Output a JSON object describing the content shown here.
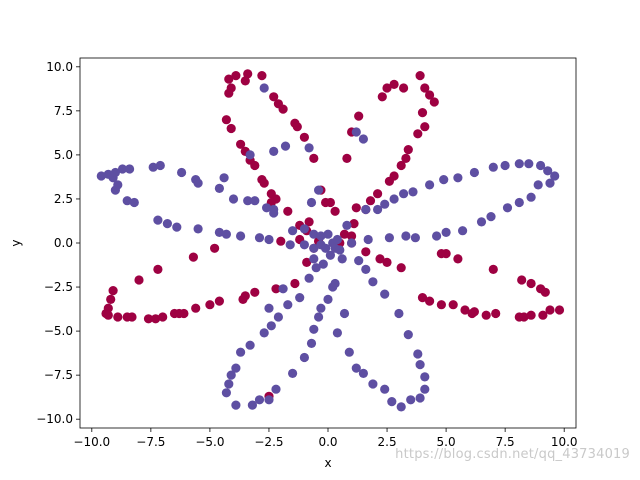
{
  "watermark": "https://blog.csdn.net/qq_43734019",
  "chart_data": {
    "type": "scatter",
    "title": "",
    "xlabel": "x",
    "ylabel": "y",
    "xlim": [
      -10.5,
      10.5
    ],
    "ylim": [
      -10.5,
      10.5
    ],
    "xticks": [
      -10.0,
      -7.5,
      -5.0,
      -2.5,
      0.0,
      2.5,
      5.0,
      7.5,
      10.0
    ],
    "yticks": [
      -10.0,
      -7.5,
      -5.0,
      -2.5,
      0.0,
      2.5,
      5.0,
      7.5,
      10.0
    ],
    "xtick_labels": [
      "−10.0",
      "−7.5",
      "−5.0",
      "−2.5",
      "0.0",
      "2.5",
      "5.0",
      "7.5",
      "10.0"
    ],
    "ytick_labels": [
      "−10.0",
      "−7.5",
      "−5.0",
      "−2.5",
      "0.0",
      "2.5",
      "5.0",
      "7.5",
      "10.0"
    ],
    "grid": false,
    "legend": false,
    "colors": {
      "red": "#9e0142",
      "blue": "#5e4fa2"
    },
    "series": [
      {
        "color": "red",
        "points": [
          [
            -4.2,
            9.3
          ],
          [
            -4.1,
            8.8
          ],
          [
            -4.2,
            8.5
          ],
          [
            -3.9,
            9.5
          ],
          [
            -3.4,
            9.6
          ],
          [
            -3.5,
            9.2
          ],
          [
            -2.8,
            9.5
          ],
          [
            -2.3,
            8.3
          ],
          [
            -2.1,
            7.9
          ],
          [
            -1.9,
            7.6
          ],
          [
            -1.4,
            6.8
          ],
          [
            -1.3,
            6.6
          ],
          [
            -4.3,
            7.0
          ],
          [
            -4.1,
            6.5
          ],
          [
            -3.7,
            5.6
          ],
          [
            -3.5,
            5.2
          ],
          [
            -3.3,
            4.7
          ],
          [
            -3.1,
            4.4
          ],
          [
            -2.8,
            3.6
          ],
          [
            -2.7,
            3.4
          ],
          [
            -2.4,
            2.8
          ],
          [
            -2.2,
            2.5
          ],
          [
            -1.7,
            1.8
          ],
          [
            -1.2,
            1.0
          ],
          [
            -0.9,
            0.7
          ],
          [
            -0.4,
            0.1
          ],
          [
            -1.0,
            6.0
          ],
          [
            -0.6,
            4.8
          ],
          [
            -0.3,
            3.0
          ],
          [
            -0.1,
            2.3
          ],
          [
            0.1,
            2.3
          ],
          [
            0.3,
            1.8
          ],
          [
            0.8,
            4.8
          ],
          [
            1.0,
            6.3
          ],
          [
            1.3,
            7.2
          ],
          [
            2.3,
            8.3
          ],
          [
            2.5,
            8.8
          ],
          [
            2.8,
            9.0
          ],
          [
            3.2,
            8.8
          ],
          [
            3.9,
            9.5
          ],
          [
            4.1,
            8.8
          ],
          [
            4.3,
            8.4
          ],
          [
            4.5,
            8.0
          ],
          [
            4.0,
            7.4
          ],
          [
            4.1,
            6.6
          ],
          [
            3.8,
            6.2
          ],
          [
            3.4,
            5.3
          ],
          [
            3.3,
            4.8
          ],
          [
            3.1,
            4.4
          ],
          [
            2.8,
            3.8
          ],
          [
            2.6,
            3.5
          ],
          [
            2.1,
            2.8
          ],
          [
            1.8,
            2.4
          ],
          [
            1.6,
            1.9
          ],
          [
            1.1,
            1.1
          ],
          [
            0.7,
            0.5
          ],
          [
            -9.2,
            -3.2
          ],
          [
            -9.3,
            -3.7
          ],
          [
            -9.4,
            -4.0
          ],
          [
            -8.9,
            -4.2
          ],
          [
            -8.5,
            -4.2
          ],
          [
            -8.3,
            -4.2
          ],
          [
            -7.6,
            -4.3
          ],
          [
            -7.3,
            -4.3
          ],
          [
            -7.0,
            -4.2
          ],
          [
            -6.5,
            -4.0
          ],
          [
            -6.1,
            -4.0
          ],
          [
            -5.6,
            -3.7
          ],
          [
            -5.0,
            -3.5
          ],
          [
            -4.6,
            -3.3
          ],
          [
            -3.5,
            -3.0
          ],
          [
            -3.1,
            -2.8
          ],
          [
            -2.2,
            -2.6
          ],
          [
            -1.4,
            -2.3
          ],
          [
            -0.9,
            -1.1
          ],
          [
            -0.6,
            -0.3
          ],
          [
            -1.2,
            0.2
          ],
          [
            -2.0,
            0.1
          ],
          [
            -8.0,
            -2.1
          ],
          [
            -7.2,
            -1.5
          ],
          [
            -5.7,
            -0.8
          ],
          [
            -4.8,
            -0.3
          ],
          [
            -9.1,
            -2.7
          ],
          [
            -9.3,
            -4.1
          ],
          [
            -3.6,
            -3.2
          ],
          [
            -6.3,
            -4.0
          ],
          [
            0.5,
            0.0
          ],
          [
            1.0,
            0.0
          ],
          [
            1.6,
            -0.5
          ],
          [
            2.2,
            -0.9
          ],
          [
            2.5,
            -1.1
          ],
          [
            3.1,
            -1.4
          ],
          [
            4.0,
            -3.1
          ],
          [
            4.3,
            -3.3
          ],
          [
            4.8,
            -3.5
          ],
          [
            5.3,
            -3.5
          ],
          [
            5.8,
            -3.8
          ],
          [
            6.2,
            -3.9
          ],
          [
            6.7,
            -4.1
          ],
          [
            7.1,
            -4.0
          ],
          [
            8.1,
            -4.2
          ],
          [
            8.3,
            -4.2
          ],
          [
            8.6,
            -4.1
          ],
          [
            9.1,
            -4.1
          ],
          [
            9.4,
            -3.8
          ],
          [
            9.8,
            -3.8
          ],
          [
            9.2,
            -2.8
          ],
          [
            9.0,
            -2.6
          ],
          [
            8.6,
            -2.3
          ],
          [
            8.2,
            -2.1
          ],
          [
            7.0,
            -1.5
          ],
          [
            5.5,
            -0.9
          ],
          [
            5.0,
            -0.6
          ],
          [
            4.8,
            -0.6
          ],
          [
            6.1,
            -4.0
          ],
          [
            -2.5,
            -8.7
          ],
          [
            1.0,
            0.4
          ],
          [
            1.2,
            2.0
          ],
          [
            -2.4,
            2.3
          ],
          [
            -0.8,
            1.2
          ]
        ]
      },
      {
        "color": "blue",
        "points": [
          [
            -2.7,
            8.8
          ],
          [
            -0.8,
            5.4
          ],
          [
            -0.4,
            3.0
          ],
          [
            -0.7,
            2.3
          ],
          [
            1.2,
            6.3
          ],
          [
            1.5,
            5.9
          ],
          [
            -1.8,
            5.5
          ],
          [
            -2.3,
            5.2
          ],
          [
            -3.3,
            5.0
          ],
          [
            -4.4,
            3.7
          ],
          [
            -3.4,
            2.4
          ],
          [
            -2.6,
            2.0
          ],
          [
            -2.3,
            1.7
          ],
          [
            -1.5,
            0.7
          ],
          [
            -1.0,
            0.8
          ],
          [
            -0.6,
            0.5
          ],
          [
            -9.6,
            3.8
          ],
          [
            -9.3,
            3.9
          ],
          [
            -9.1,
            3.7
          ],
          [
            -9.0,
            4.0
          ],
          [
            -8.7,
            4.2
          ],
          [
            -8.4,
            4.2
          ],
          [
            -8.9,
            3.3
          ],
          [
            -9.0,
            3.0
          ],
          [
            -8.5,
            2.4
          ],
          [
            -8.2,
            2.3
          ],
          [
            -7.4,
            4.3
          ],
          [
            -7.1,
            4.4
          ],
          [
            -6.2,
            4.0
          ],
          [
            -5.6,
            3.6
          ],
          [
            -5.5,
            3.4
          ],
          [
            -4.6,
            3.1
          ],
          [
            -4.0,
            2.5
          ],
          [
            -3.1,
            2.4
          ],
          [
            -2.3,
            1.9
          ],
          [
            -7.2,
            1.3
          ],
          [
            -6.8,
            1.1
          ],
          [
            -6.4,
            0.9
          ],
          [
            -5.5,
            0.8
          ],
          [
            -4.6,
            0.6
          ],
          [
            -4.3,
            0.5
          ],
          [
            -3.7,
            0.4
          ],
          [
            -2.9,
            0.3
          ],
          [
            -2.5,
            0.2
          ],
          [
            -1.6,
            -0.1
          ],
          [
            -1.0,
            -0.1
          ],
          [
            -0.6,
            -0.3
          ],
          [
            -0.3,
            -0.1
          ],
          [
            0.2,
            0.0
          ],
          [
            0.4,
            0.2
          ],
          [
            -0.1,
            -0.3
          ],
          [
            -0.3,
            0.4
          ],
          [
            0.0,
            0.5
          ],
          [
            0.3,
            -0.3
          ],
          [
            0.8,
            1.0
          ],
          [
            1.6,
            1.9
          ],
          [
            2.1,
            1.9
          ],
          [
            2.4,
            2.2
          ],
          [
            2.8,
            2.5
          ],
          [
            3.2,
            2.8
          ],
          [
            3.6,
            2.9
          ],
          [
            4.3,
            3.3
          ],
          [
            4.9,
            3.6
          ],
          [
            5.5,
            3.7
          ],
          [
            6.2,
            4.0
          ],
          [
            7.0,
            4.3
          ],
          [
            7.5,
            4.4
          ],
          [
            8.1,
            4.5
          ],
          [
            8.5,
            4.5
          ],
          [
            9.0,
            4.4
          ],
          [
            9.3,
            4.1
          ],
          [
            9.6,
            3.8
          ],
          [
            9.4,
            3.4
          ],
          [
            8.9,
            3.3
          ],
          [
            8.6,
            2.6
          ],
          [
            8.1,
            2.3
          ],
          [
            7.6,
            2.0
          ],
          [
            6.9,
            1.5
          ],
          [
            6.5,
            1.2
          ],
          [
            5.7,
            0.7
          ],
          [
            5.0,
            0.6
          ],
          [
            4.6,
            0.4
          ],
          [
            3.7,
            0.3
          ],
          [
            3.3,
            0.4
          ],
          [
            2.6,
            0.3
          ],
          [
            1.7,
            0.2
          ],
          [
            1.0,
            0.0
          ],
          [
            0.5,
            -0.4
          ],
          [
            0.1,
            -0.7
          ],
          [
            -0.2,
            -1.2
          ],
          [
            -0.5,
            -1.4
          ],
          [
            -0.8,
            -2.0
          ],
          [
            -1.2,
            -3.1
          ],
          [
            -1.7,
            -3.5
          ],
          [
            -2.1,
            -4.2
          ],
          [
            -2.4,
            -4.7
          ],
          [
            -2.7,
            -5.1
          ],
          [
            -3.3,
            -5.8
          ],
          [
            -3.7,
            -6.2
          ],
          [
            -3.9,
            -7.1
          ],
          [
            -4.1,
            -7.5
          ],
          [
            -4.2,
            -8.0
          ],
          [
            -4.3,
            -8.5
          ],
          [
            -3.9,
            -9.2
          ],
          [
            -3.2,
            -9.2
          ],
          [
            -2.9,
            -8.9
          ],
          [
            -2.5,
            -8.9
          ],
          [
            -2.2,
            -8.3
          ],
          [
            -1.5,
            -7.4
          ],
          [
            -1.0,
            -6.5
          ],
          [
            -0.7,
            -5.7
          ],
          [
            -0.6,
            -4.9
          ],
          [
            -0.4,
            -4.2
          ],
          [
            -0.3,
            -3.7
          ],
          [
            0.0,
            -3.2
          ],
          [
            0.2,
            -2.5
          ],
          [
            0.3,
            -2.3
          ],
          [
            0.4,
            -5.1
          ],
          [
            0.7,
            -4.0
          ],
          [
            0.9,
            -6.2
          ],
          [
            1.2,
            -7.1
          ],
          [
            1.5,
            -7.4
          ],
          [
            1.9,
            -8.0
          ],
          [
            2.4,
            -8.3
          ],
          [
            2.7,
            -9.0
          ],
          [
            3.1,
            -9.3
          ],
          [
            3.5,
            -8.9
          ],
          [
            3.9,
            -8.8
          ],
          [
            4.1,
            -8.3
          ],
          [
            4.1,
            -7.6
          ],
          [
            3.9,
            -6.9
          ],
          [
            3.8,
            -6.3
          ],
          [
            3.4,
            -5.2
          ],
          [
            3.0,
            -4.0
          ],
          [
            2.4,
            -2.9
          ],
          [
            1.9,
            -2.2
          ],
          [
            1.6,
            -1.5
          ],
          [
            1.3,
            -1.0
          ],
          [
            -1.9,
            -2.6
          ],
          [
            -2.5,
            -3.7
          ],
          [
            -0.6,
            -0.9
          ],
          [
            0.6,
            -0.9
          ]
        ]
      }
    ]
  }
}
